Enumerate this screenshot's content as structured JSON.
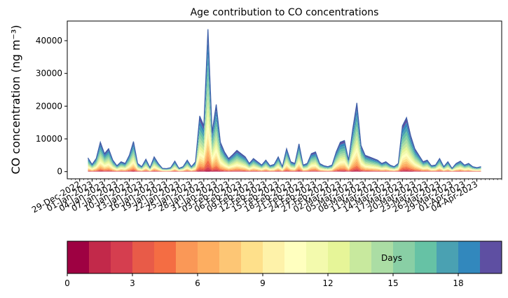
{
  "chart_data": {
    "type": "area",
    "title": "Age contribution to CO concentrations",
    "ylabel": "CO concentration (ng m⁻³)",
    "xlabel": "",
    "ylim": [
      -2200,
      46000
    ],
    "yticks": [
      0,
      10000,
      20000,
      30000,
      40000
    ],
    "xlim": [
      "2022-12-26",
      "2023-04-10"
    ],
    "xticks": [
      "2022-12-29",
      "2023-01-01",
      "2023-01-04",
      "2023-01-07",
      "2023-01-10",
      "2023-01-13",
      "2023-01-16",
      "2023-01-19",
      "2023-01-22",
      "2023-01-25",
      "2023-01-28",
      "2023-01-31",
      "2023-02-03",
      "2023-02-06",
      "2023-02-09",
      "2023-02-12",
      "2023-02-15",
      "2023-02-18",
      "2023-02-21",
      "2023-02-24",
      "2023-02-27",
      "2023-03-02",
      "2023-03-05",
      "2023-03-08",
      "2023-03-11",
      "2023-03-14",
      "2023-03-17",
      "2023-03-20",
      "2023-03-23",
      "2023-03-26",
      "2023-03-29",
      "2023-04-01",
      "2023-04-04"
    ],
    "xtick_labels": [
      "29-Dec-2022",
      "01-Jan-2023",
      "04-Jan-2023",
      "07-Jan-2023",
      "10-Jan-2023",
      "13-Jan-2023",
      "16-Jan-2023",
      "19-Jan-2023",
      "22-Jan-2023",
      "25-Jan-2023",
      "28-Jan-2023",
      "31-Jan-2023",
      "03-Feb-2023",
      "06-Feb-2023",
      "09-Feb-2023",
      "12-Feb-2023",
      "15-Feb-2023",
      "18-Feb-2023",
      "21-Feb-2023",
      "24-Feb-2023",
      "27-Feb-2023",
      "02-Mar-2023",
      "05-Mar-2023",
      "08-Mar-2023",
      "11-Mar-2023",
      "14-Mar-2023",
      "17-Mar-2023",
      "20-Mar-2023",
      "23-Mar-2023",
      "26-Mar-2023",
      "29-Mar-2023",
      "01-Apr-2023",
      "04-Apr-2023"
    ],
    "grid": false,
    "total": {
      "x": [
        "2022-12-31",
        "2023-01-01",
        "2023-01-02",
        "2023-01-03",
        "2023-01-04",
        "2023-01-05",
        "2023-01-06",
        "2023-01-07",
        "2023-01-08",
        "2023-01-09",
        "2023-01-10",
        "2023-01-11",
        "2023-01-12",
        "2023-01-13",
        "2023-01-14",
        "2023-01-15",
        "2023-01-16",
        "2023-01-17",
        "2023-01-18",
        "2023-01-19",
        "2023-01-20",
        "2023-01-21",
        "2023-01-22",
        "2023-01-23",
        "2023-01-24",
        "2023-01-25",
        "2023-01-26",
        "2023-01-27",
        "2023-01-28",
        "2023-01-29",
        "2023-01-30",
        "2023-01-31",
        "2023-02-01",
        "2023-02-02",
        "2023-02-03",
        "2023-02-04",
        "2023-02-05",
        "2023-02-06",
        "2023-02-07",
        "2023-02-08",
        "2023-02-09",
        "2023-02-10",
        "2023-02-11",
        "2023-02-12",
        "2023-02-13",
        "2023-02-14",
        "2023-02-15",
        "2023-02-16",
        "2023-02-17",
        "2023-02-18",
        "2023-02-19",
        "2023-02-20",
        "2023-02-21",
        "2023-02-22",
        "2023-02-23",
        "2023-02-24",
        "2023-02-25",
        "2023-02-26",
        "2023-02-27",
        "2023-02-28",
        "2023-03-01",
        "2023-03-02",
        "2023-03-03",
        "2023-03-04",
        "2023-03-05",
        "2023-03-06",
        "2023-03-07",
        "2023-03-08",
        "2023-03-09",
        "2023-03-10",
        "2023-03-11",
        "2023-03-12",
        "2023-03-13",
        "2023-03-14",
        "2023-03-15",
        "2023-03-16",
        "2023-03-17",
        "2023-03-18",
        "2023-03-19",
        "2023-03-20",
        "2023-03-21",
        "2023-03-22",
        "2023-03-23",
        "2023-03-24",
        "2023-03-25",
        "2023-03-26",
        "2023-03-27",
        "2023-03-28",
        "2023-03-29",
        "2023-03-30",
        "2023-03-31",
        "2023-04-01",
        "2023-04-02",
        "2023-04-03",
        "2023-04-04",
        "2023-04-05"
      ],
      "y": [
        4200,
        2200,
        4000,
        9000,
        5500,
        7000,
        3500,
        1800,
        3000,
        2500,
        5000,
        9200,
        2500,
        1500,
        3800,
        1200,
        4500,
        2500,
        1000,
        900,
        1200,
        3200,
        1000,
        1500,
        3500,
        1500,
        3000,
        17000,
        14000,
        43500,
        12000,
        20500,
        9000,
        6000,
        4000,
        5200,
        6500,
        5500,
        4500,
        2500,
        4000,
        3000,
        2000,
        3500,
        1800,
        2200,
        4500,
        1500,
        7000,
        3000,
        2500,
        8500,
        2000,
        2500,
        5500,
        6000,
        2500,
        1800,
        1500,
        2000,
        6000,
        9000,
        9500,
        3500,
        13000,
        21000,
        8000,
        5000,
        4500,
        4000,
        3500,
        2500,
        3000,
        2000,
        1500,
        2500,
        14000,
        16500,
        11000,
        7000,
        5000,
        3000,
        3500,
        1800,
        2000,
        4000,
        1500,
        3000,
        1000,
        2500,
        3200,
        2000,
        2500,
        1500,
        1200,
        1500
      ]
    },
    "colorbar": {
      "label": "Days",
      "min": 0,
      "max": 20,
      "ticks": [
        0,
        3,
        6,
        9,
        12,
        15,
        18
      ],
      "colors": [
        "#9e0142",
        "#c2294a",
        "#d53e4f",
        "#e85b48",
        "#f46d43",
        "#fa9857",
        "#fdae61",
        "#fdc675",
        "#fee08b",
        "#fef2a9",
        "#ffffbf",
        "#f3faad",
        "#e6f598",
        "#c8e99e",
        "#abdda4",
        "#89cfa5",
        "#66c2a5",
        "#4aa1b2",
        "#3288bd",
        "#5e4fa2"
      ]
    }
  }
}
